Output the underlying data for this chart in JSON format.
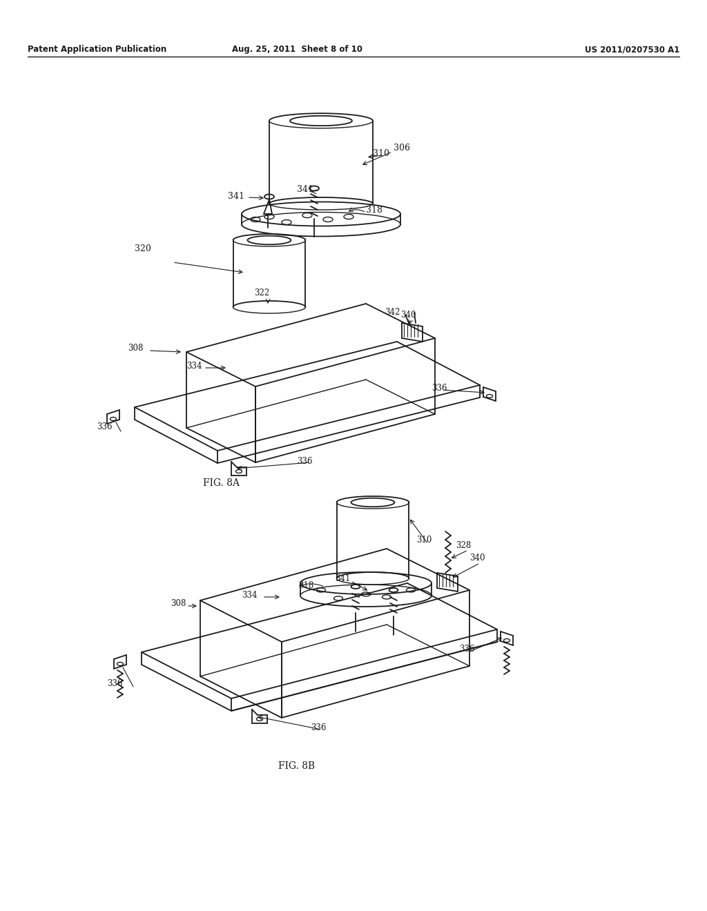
{
  "header_left": "Patent Application Publication",
  "header_center": "Aug. 25, 2011  Sheet 8 of 10",
  "header_right": "US 2011/0207530 A1",
  "background_color": "#ffffff",
  "line_color": "#1a1a1a",
  "fig8a_label": "FIG. 8A",
  "fig8b_label": "FIG. 8B"
}
